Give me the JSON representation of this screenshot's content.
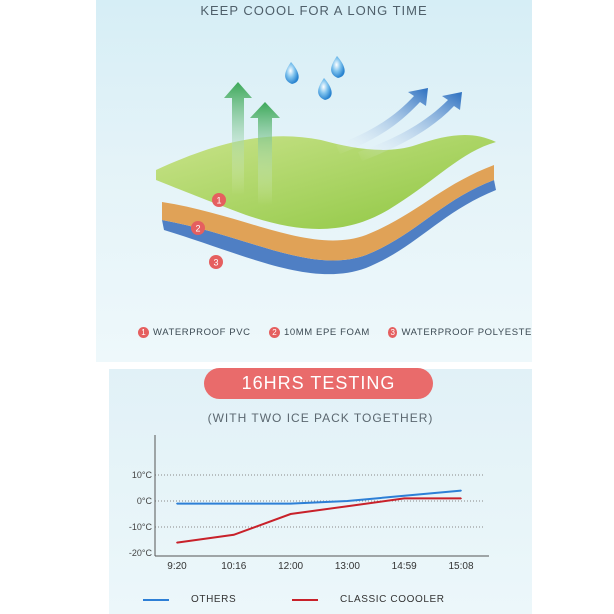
{
  "header": {
    "title": "KEEP COOOL FOR A LONG TIME"
  },
  "layers": [
    {
      "number": "1",
      "label": "WATERPROOF PVC",
      "color": "#8cc63f"
    },
    {
      "number": "2",
      "label": "10MM EPE FOAM",
      "color": "#e0a257"
    },
    {
      "number": "3",
      "label": "WATERPROOF POLYESTE",
      "color": "#4f7fc4"
    }
  ],
  "test": {
    "badge": "16HRS TESTING",
    "subtitle": "(WITH TWO ICE PACK TOGETHER)"
  },
  "colors": {
    "badge": "#e96b6b",
    "others": "#2d7fd6",
    "classic": "#c8212a"
  },
  "chart_data": {
    "type": "line",
    "categories": [
      "9:20",
      "10:16",
      "12:00",
      "13:00",
      "14:59",
      "15:08"
    ],
    "y_ticks": [
      "10°C",
      "0°C",
      "-10°C",
      "-20°C"
    ],
    "ylim": [
      -20,
      10
    ],
    "grid": "dotted horizontal at tick values",
    "series": [
      {
        "name": "OTHERS",
        "color": "#2d7fd6",
        "values": [
          -1,
          -1,
          -1,
          0,
          2,
          4
        ]
      },
      {
        "name": "CLASSIC COOOLER",
        "color": "#c8212a",
        "values": [
          -16,
          -13,
          -5,
          -2,
          1,
          1
        ]
      }
    ],
    "legend_position": "bottom"
  }
}
